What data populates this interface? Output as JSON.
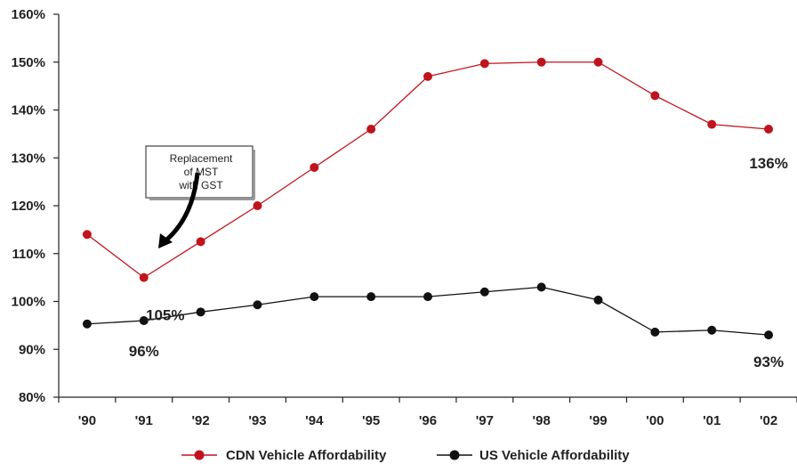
{
  "chart_data": {
    "type": "line",
    "categories": [
      "'90",
      "'91",
      "'92",
      "'93",
      "'94",
      "'95",
      "'96",
      "'97",
      "'98",
      "'99",
      "'00",
      "'01",
      "'02"
    ],
    "ylim": [
      80,
      160
    ],
    "y_ticks": [
      "80%",
      "90%",
      "100%",
      "110%",
      "120%",
      "130%",
      "140%",
      "150%",
      "160%"
    ],
    "grid": false,
    "legend_position": "bottom",
    "series": [
      {
        "name": "CDN Vehicle Affordability",
        "color": "#c0141c",
        "values": [
          114,
          105,
          112.5,
          120,
          128,
          136,
          147,
          149.7,
          150,
          150,
          143,
          137,
          136
        ]
      },
      {
        "name": "US Vehicle Affordability",
        "color": "#111111",
        "values": [
          95.3,
          96,
          97.8,
          99.3,
          101,
          101,
          101,
          102,
          103,
          100.3,
          93.6,
          94,
          93
        ]
      }
    ],
    "data_labels": [
      {
        "series": 0,
        "index": 1,
        "text": "105%"
      },
      {
        "series": 1,
        "index": 1,
        "text": "96%"
      },
      {
        "series": 0,
        "index": 12,
        "text": "136%"
      },
      {
        "series": 1,
        "index": 12,
        "text": "93%"
      }
    ],
    "annotation": {
      "lines": [
        "Replacement",
        "of MST",
        "with GST"
      ]
    }
  }
}
